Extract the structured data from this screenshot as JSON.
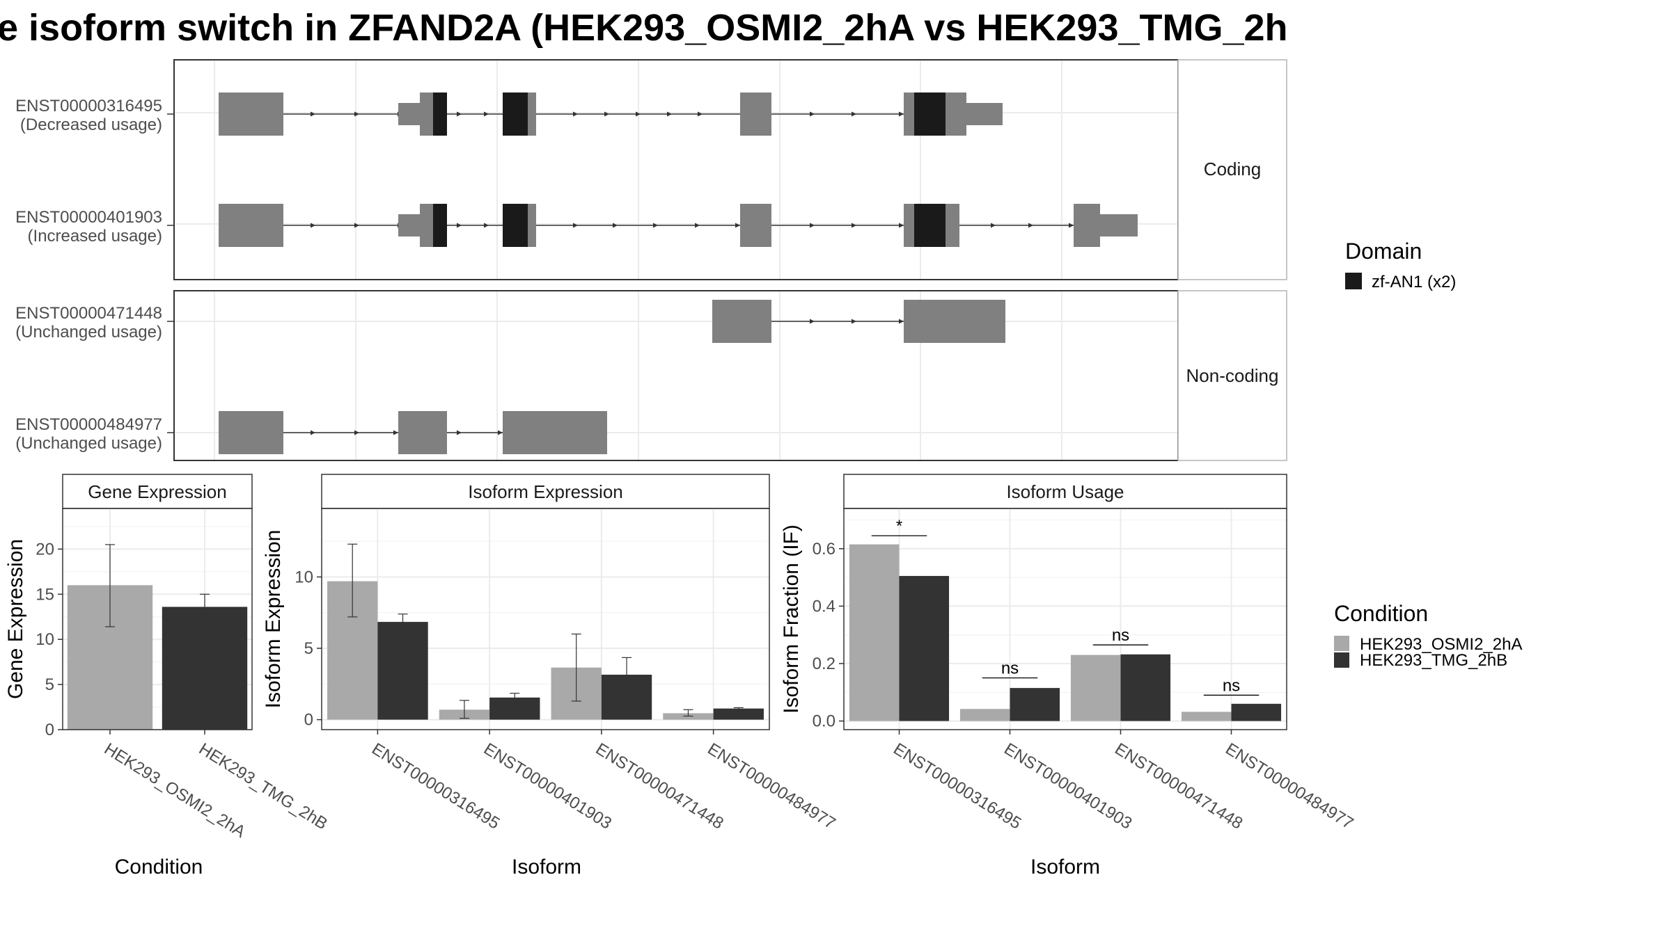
{
  "title": "e isoform switch in ZFAND2A (HEK293_OSMI2_2hA vs HEK293_TMG_2h",
  "colors": {
    "exon": "#808080",
    "domain": "#1a1a1a",
    "condition_a": "#a9a9a9",
    "condition_b": "#333333",
    "grid": "#ebebeb",
    "border": "#333333"
  },
  "structure": {
    "coding_strip": "Coding",
    "noncoding_strip": "Non-coding",
    "transcripts": [
      {
        "id": "ENST00000316495",
        "usage": "(Decreased usage)",
        "group": "coding"
      },
      {
        "id": "ENST00000401903",
        "usage": "(Increased usage)",
        "group": "coding"
      },
      {
        "id": "ENST00000471448",
        "usage": "(Unchanged usage)",
        "group": "noncoding"
      },
      {
        "id": "ENST00000484977",
        "usage": "(Unchanged usage)",
        "group": "noncoding"
      }
    ]
  },
  "legend_domain": {
    "title": "Domain",
    "items": [
      {
        "label": "zf-AN1 (x2)",
        "color": "#1a1a1a"
      }
    ]
  },
  "legend_condition": {
    "title": "Condition",
    "items": [
      {
        "label": "HEK293_OSMI2_2hA",
        "color": "#a9a9a9"
      },
      {
        "label": "HEK293_TMG_2hB",
        "color": "#333333"
      }
    ]
  },
  "chart_data": [
    {
      "type": "bar",
      "title": "Gene Expression",
      "xlabel": "Condition",
      "ylabel": "Gene Expression",
      "ylim": [
        0,
        24.5
      ],
      "yticks": [
        0,
        5,
        10,
        15,
        20
      ],
      "categories": [
        "HEK293_OSMI2_2hA",
        "HEK293_TMG_2hB"
      ],
      "values": [
        16.0,
        13.6
      ],
      "err_low": [
        11.4,
        12.3
      ],
      "err_high": [
        20.5,
        15.0
      ]
    },
    {
      "type": "bar",
      "title": "Isoform Expression",
      "xlabel": "Isoform",
      "ylabel": "Isoform Expression",
      "ylim": [
        -0.7,
        14.8
      ],
      "yticks": [
        0,
        5,
        10
      ],
      "categories": [
        "ENST00000316495",
        "ENST00000401903",
        "ENST00000471448",
        "ENST00000484977"
      ],
      "series": [
        {
          "name": "HEK293_OSMI2_2hA",
          "values": [
            9.7,
            0.7,
            3.65,
            0.45
          ],
          "err_low": [
            7.2,
            0.1,
            1.3,
            0.25
          ],
          "err_high": [
            12.3,
            1.35,
            6.0,
            0.7
          ]
        },
        {
          "name": "HEK293_TMG_2hB",
          "values": [
            6.85,
            1.55,
            3.15,
            0.78
          ],
          "err_low": [
            6.4,
            1.25,
            2.0,
            0.72
          ],
          "err_high": [
            7.4,
            1.85,
            4.35,
            0.84
          ]
        }
      ]
    },
    {
      "type": "bar",
      "title": "Isoform Usage",
      "xlabel": "Isoform",
      "ylabel": "Isoform Fraction (IF)",
      "ylim": [
        -0.03,
        0.74
      ],
      "yticks": [
        0.0,
        0.2,
        0.4,
        0.6
      ],
      "ytick_labels": [
        "0.0",
        "0.2",
        "0.4",
        "0.6"
      ],
      "categories": [
        "ENST00000316495",
        "ENST00000401903",
        "ENST00000471448",
        "ENST00000484977"
      ],
      "series": [
        {
          "name": "HEK293_OSMI2_2hA",
          "values": [
            0.615,
            0.042,
            0.23,
            0.032
          ]
        },
        {
          "name": "HEK293_TMG_2hB",
          "values": [
            0.505,
            0.115,
            0.232,
            0.06
          ]
        }
      ],
      "significance": [
        {
          "label": "*",
          "y": 0.645
        },
        {
          "label": "ns",
          "y": 0.15
        },
        {
          "label": "ns",
          "y": 0.265
        },
        {
          "label": "ns",
          "y": 0.09
        }
      ]
    }
  ]
}
